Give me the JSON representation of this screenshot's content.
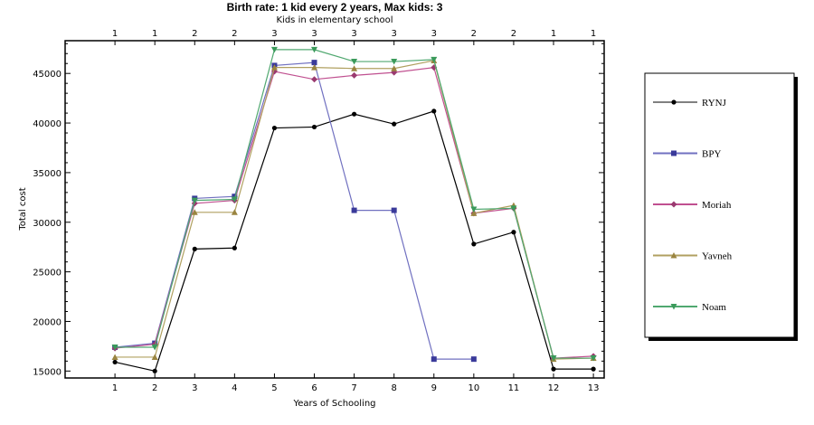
{
  "chart_data": {
    "type": "line",
    "title": "Birth rate: 1 kid every 2 years, Max kids: 3",
    "subtitle": "Kids in elementary school",
    "xlabel": "Years of Schooling",
    "ylabel": "Total cost",
    "x": [
      1,
      2,
      3,
      4,
      5,
      6,
      7,
      8,
      9,
      10,
      11,
      12,
      13
    ],
    "xlim": [
      -0.25,
      13.27
    ],
    "ylim": [
      14300,
      48300
    ],
    "yticks": [
      15000,
      20000,
      25000,
      30000,
      35000,
      40000,
      45000
    ],
    "ytick_labels": [
      "15000",
      "20000",
      "25000",
      "30000",
      "35000",
      "40000",
      "45000"
    ],
    "top_axis_labels": [
      "1",
      "1",
      "2",
      "2",
      "3",
      "3",
      "3",
      "3",
      "3",
      "2",
      "2",
      "1",
      "1"
    ],
    "legend_position": "right",
    "grid": false,
    "series": [
      {
        "name": "RYNJ",
        "color": "#000000",
        "line_color": "#000000",
        "marker": "circle",
        "values": [
          15900,
          15000,
          27300,
          27400,
          39500,
          39600,
          40900,
          39900,
          41200,
          27800,
          29000,
          15200,
          15200
        ]
      },
      {
        "name": "BPY",
        "color": "#3a3a9a",
        "line_color": "#7070c0",
        "marker": "square",
        "values": [
          17400,
          17800,
          32400,
          32600,
          45800,
          46100,
          31200,
          31200,
          16200,
          16200,
          null,
          null,
          null
        ]
      },
      {
        "name": "Moriah",
        "color": "#9a3a70",
        "line_color": "#c05090",
        "marker": "diamond",
        "values": [
          17300,
          17700,
          31900,
          32200,
          45200,
          44400,
          44800,
          45100,
          45600,
          30900,
          31400,
          16300,
          16500
        ]
      },
      {
        "name": "Yavneh",
        "color": "#9a8440",
        "line_color": "#b0a060",
        "marker": "triangle-up",
        "values": [
          16400,
          16400,
          31000,
          31000,
          45600,
          45600,
          45500,
          45500,
          46300,
          30900,
          31700,
          16200,
          16300
        ]
      },
      {
        "name": "Noam",
        "color": "#3a9a5a",
        "line_color": "#50a870",
        "marker": "triangle-down",
        "values": [
          17400,
          17400,
          32200,
          32300,
          47400,
          47400,
          46200,
          46200,
          46400,
          31300,
          31400,
          16300,
          16300
        ]
      }
    ]
  }
}
